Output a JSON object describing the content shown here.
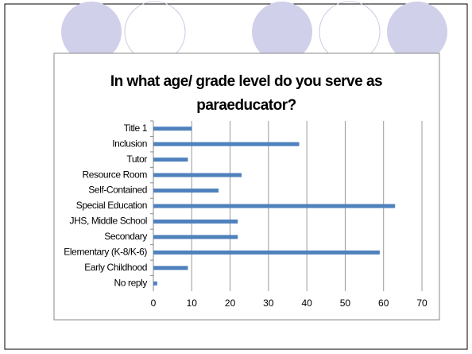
{
  "chart_data": {
    "type": "barh",
    "title": "In what age/ grade level do you serve as paraeducator?",
    "categories": [
      "Title 1",
      "Inclusion",
      "Tutor",
      "Resource Room",
      "Self-Contained",
      "Special Education",
      "JHS, Middle School",
      "Secondary",
      "Elementary (K-8/K-6)",
      "Early Childhood",
      "No reply"
    ],
    "values": [
      10,
      38,
      9,
      23,
      17,
      63,
      22,
      22,
      59,
      9,
      1
    ],
    "color": "#4f81bd",
    "xlim": [
      0,
      70
    ],
    "xticks": [
      0,
      10,
      20,
      30,
      40,
      50,
      60,
      70
    ],
    "grid": true
  }
}
